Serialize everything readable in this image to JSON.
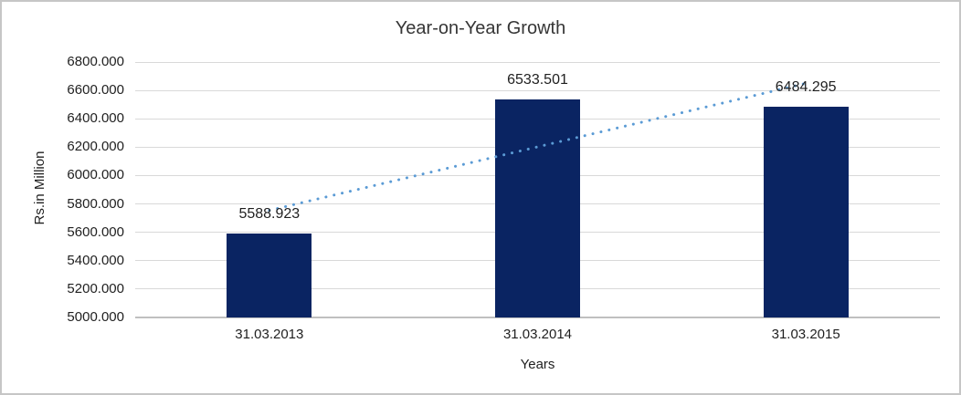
{
  "chart_data": {
    "type": "bar",
    "title": "Year-on-Year Growth",
    "categories": [
      "31.03.2013",
      "31.03.2014",
      "31.03.2015"
    ],
    "values": [
      5588.923,
      6533.501,
      6484.295
    ],
    "data_labels": [
      "5588.923",
      "6533.501",
      "6484.295"
    ],
    "xlabel": "Years",
    "ylabel": "Rs.in Million",
    "ylim": [
      5000,
      6800
    ],
    "ytick_step": 200,
    "ytick_labels": [
      "6800.000",
      "6600.000",
      "6400.000",
      "6200.000",
      "6000.000",
      "5800.000",
      "5600.000",
      "5400.000",
      "5200.000",
      "5000.000"
    ],
    "grid": true,
    "legend": "none",
    "trendline": {
      "kind": "linear",
      "dash": "dotted"
    },
    "colors": {
      "bar": "#0a2462",
      "trendline": "#5b9bd5",
      "gridline": "#d9d9d9",
      "axis_line": "#bfbfbf",
      "text": "#1f1f1f",
      "background": "#ffffff",
      "border": "#c6c6c6"
    }
  }
}
